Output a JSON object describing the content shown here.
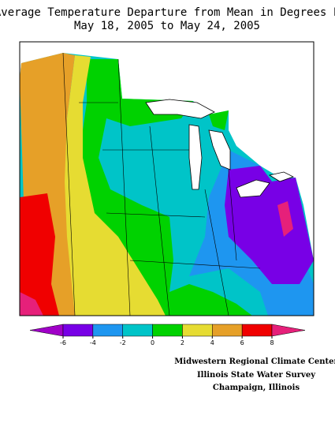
{
  "title": [
    "Average Temperature Departure from Mean in Degrees F",
    "May 18, 2005 to May 24, 2005"
  ],
  "colorbar": {
    "ticks": [
      -6,
      -4,
      -2,
      0,
      2,
      4,
      6,
      8
    ],
    "colors": [
      "#a000c8",
      "#7800e6",
      "#1e96f0",
      "#00c4c8",
      "#00d200",
      "#e6dc32",
      "#e6a028",
      "#f00000",
      "#e6207a"
    ]
  },
  "credits": [
    "Midwestern Regional Climate Center",
    "Illinois State Water Survey",
    "Champaign, Illinois"
  ]
}
